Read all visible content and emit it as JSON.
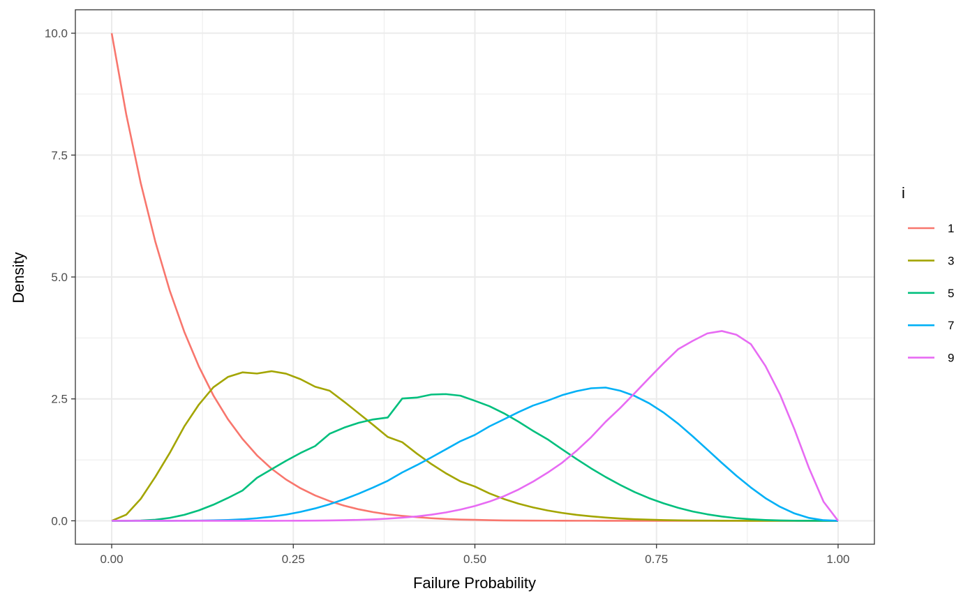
{
  "chart_data": {
    "type": "line",
    "title": "",
    "xlabel": "Failure Probability",
    "ylabel": "Density",
    "xlim": [
      -0.05,
      1.05
    ],
    "ylim": [
      -0.48,
      10.48
    ],
    "x_ticks": [
      0,
      0.25,
      0.5,
      0.75,
      1
    ],
    "x_tick_labels": [
      "0.00",
      "0.25",
      "0.50",
      "0.75",
      "1.00"
    ],
    "y_ticks": [
      0,
      2.5,
      5,
      7.5,
      10
    ],
    "y_tick_labels": [
      "0.0",
      "2.5",
      "5.0",
      "7.5",
      "10.0"
    ],
    "grid": true,
    "theme": "bw",
    "legend": {
      "title": "i",
      "position": "right"
    },
    "series": [
      {
        "name": "1",
        "color": "#F8766D",
        "x": [
          0,
          0.02,
          0.04,
          0.06,
          0.08,
          0.1,
          0.12,
          0.14,
          0.16,
          0.18,
          0.2,
          0.22,
          0.24,
          0.26,
          0.28,
          0.3,
          0.32,
          0.34,
          0.36,
          0.38,
          0.4,
          0.42,
          0.44,
          0.46,
          0.48,
          0.5,
          0.52,
          0.54,
          0.56,
          0.58,
          0.6,
          0.62,
          0.64,
          0.66,
          0.68,
          0.7,
          0.72,
          0.74,
          0.76,
          0.78,
          0.8,
          0.82,
          0.84,
          0.86,
          0.88,
          0.9,
          0.92,
          0.94,
          0.96,
          0.98,
          1
        ],
        "y": [
          10,
          8.337,
          6.925,
          5.728,
          4.716,
          3.874,
          3.165,
          2.571,
          2.084,
          1.681,
          1.342,
          1.069,
          0.847,
          0.667,
          0.521,
          0.404,
          0.31,
          0.236,
          0.178,
          0.133,
          0.101,
          0.075,
          0.053,
          0.037,
          0.026,
          0.02,
          0.013,
          0.008,
          0.005,
          0.004,
          0.003,
          0.002,
          0.001,
          0.001,
          0,
          0,
          0,
          0,
          0,
          0,
          0,
          0,
          0,
          0,
          0,
          0,
          0,
          0,
          0,
          0,
          0
        ]
      },
      {
        "name": "3",
        "color": "#A3A500",
        "x": [
          0,
          0.02,
          0.04,
          0.06,
          0.08,
          0.1,
          0.12,
          0.14,
          0.16,
          0.18,
          0.2,
          0.22,
          0.24,
          0.26,
          0.28,
          0.3,
          0.32,
          0.34,
          0.36,
          0.38,
          0.4,
          0.42,
          0.44,
          0.46,
          0.48,
          0.5,
          0.52,
          0.54,
          0.56,
          0.58,
          0.6,
          0.62,
          0.64,
          0.66,
          0.68,
          0.7,
          0.72,
          0.74,
          0.76,
          0.78,
          0.8,
          0.82,
          0.84,
          0.86,
          0.88,
          0.9,
          0.92,
          0.94,
          0.96,
          0.98,
          1
        ],
        "y": [
          0,
          0.125,
          0.45,
          0.9,
          1.393,
          1.937,
          2.383,
          2.738,
          2.95,
          3.044,
          3.02,
          3.068,
          3.017,
          2.904,
          2.75,
          2.668,
          2.442,
          2.205,
          1.966,
          1.72,
          1.612,
          1.379,
          1.165,
          0.975,
          0.809,
          0.703,
          0.562,
          0.447,
          0.352,
          0.275,
          0.212,
          0.162,
          0.122,
          0.091,
          0.066,
          0.047,
          0.033,
          0.023,
          0.015,
          0.009,
          0.006,
          0.004,
          0.002,
          0.001,
          0,
          0,
          0,
          0,
          0,
          0,
          0
        ]
      },
      {
        "name": "5",
        "color": "#00BF7D",
        "x": [
          0,
          0.02,
          0.04,
          0.06,
          0.08,
          0.1,
          0.12,
          0.14,
          0.16,
          0.18,
          0.2,
          0.22,
          0.24,
          0.26,
          0.28,
          0.3,
          0.32,
          0.34,
          0.36,
          0.38,
          0.4,
          0.42,
          0.44,
          0.46,
          0.48,
          0.5,
          0.52,
          0.54,
          0.56,
          0.58,
          0.6,
          0.62,
          0.64,
          0.66,
          0.68,
          0.7,
          0.72,
          0.74,
          0.76,
          0.78,
          0.8,
          0.82,
          0.84,
          0.86,
          0.88,
          0.9,
          0.92,
          0.94,
          0.96,
          0.98,
          1
        ],
        "y": [
          0,
          0.0004,
          0.005,
          0.022,
          0.06,
          0.123,
          0.214,
          0.33,
          0.468,
          0.62,
          0.881,
          1.057,
          1.23,
          1.391,
          1.532,
          1.785,
          1.911,
          2.01,
          2.079,
          2.118,
          2.508,
          2.527,
          2.589,
          2.598,
          2.566,
          2.461,
          2.35,
          2.204,
          2.033,
          1.845,
          1.672,
          1.466,
          1.266,
          1.075,
          0.898,
          0.736,
          0.589,
          0.463,
          0.357,
          0.266,
          0.191,
          0.133,
          0.088,
          0.055,
          0.032,
          0.017,
          0.008,
          0.003,
          0.001,
          0,
          0
        ]
      },
      {
        "name": "7",
        "color": "#00B0F6",
        "x": [
          0,
          0.02,
          0.04,
          0.06,
          0.08,
          0.1,
          0.12,
          0.14,
          0.16,
          0.18,
          0.2,
          0.22,
          0.24,
          0.26,
          0.28,
          0.3,
          0.32,
          0.34,
          0.36,
          0.38,
          0.4,
          0.42,
          0.44,
          0.46,
          0.48,
          0.5,
          0.52,
          0.54,
          0.56,
          0.58,
          0.6,
          0.62,
          0.64,
          0.66,
          0.68,
          0.7,
          0.72,
          0.74,
          0.76,
          0.78,
          0.8,
          0.82,
          0.84,
          0.86,
          0.88,
          0.9,
          0.92,
          0.94,
          0.96,
          0.98,
          1
        ],
        "y": [
          0,
          0,
          0,
          0.0001,
          0.0005,
          0.002,
          0.004,
          0.009,
          0.017,
          0.03,
          0.053,
          0.083,
          0.126,
          0.183,
          0.254,
          0.34,
          0.441,
          0.556,
          0.683,
          0.82,
          0.992,
          1.141,
          1.3,
          1.465,
          1.632,
          1.762,
          1.936,
          2.081,
          2.229,
          2.363,
          2.463,
          2.576,
          2.659,
          2.718,
          2.732,
          2.668,
          2.56,
          2.409,
          2.217,
          1.989,
          1.73,
          1.46,
          1.187,
          0.924,
          0.682,
          0.465,
          0.288,
          0.151,
          0.059,
          0.012,
          0
        ]
      },
      {
        "name": "9",
        "color": "#E76BF3",
        "x": [
          0,
          0.02,
          0.04,
          0.06,
          0.08,
          0.1,
          0.12,
          0.14,
          0.16,
          0.18,
          0.2,
          0.22,
          0.24,
          0.26,
          0.28,
          0.3,
          0.32,
          0.34,
          0.36,
          0.38,
          0.4,
          0.42,
          0.44,
          0.46,
          0.48,
          0.5,
          0.52,
          0.54,
          0.56,
          0.58,
          0.6,
          0.62,
          0.64,
          0.66,
          0.68,
          0.7,
          0.72,
          0.74,
          0.76,
          0.78,
          0.8,
          0.82,
          0.84,
          0.86,
          0.88,
          0.9,
          0.92,
          0.94,
          0.96,
          0.98,
          1
        ],
        "y": [
          0,
          0,
          0,
          0,
          0,
          0,
          0,
          0,
          0,
          0,
          0.0002,
          0.0004,
          0.001,
          0.002,
          0.004,
          0.007,
          0.012,
          0.019,
          0.029,
          0.044,
          0.064,
          0.09,
          0.125,
          0.171,
          0.23,
          0.303,
          0.394,
          0.505,
          0.641,
          0.803,
          0.986,
          1.19,
          1.437,
          1.714,
          2.031,
          2.313,
          2.619,
          2.93,
          3.236,
          3.521,
          3.691,
          3.843,
          3.892,
          3.816,
          3.622,
          3.175,
          2.592,
          1.873,
          1.079,
          0.391,
          0
        ]
      }
    ]
  }
}
